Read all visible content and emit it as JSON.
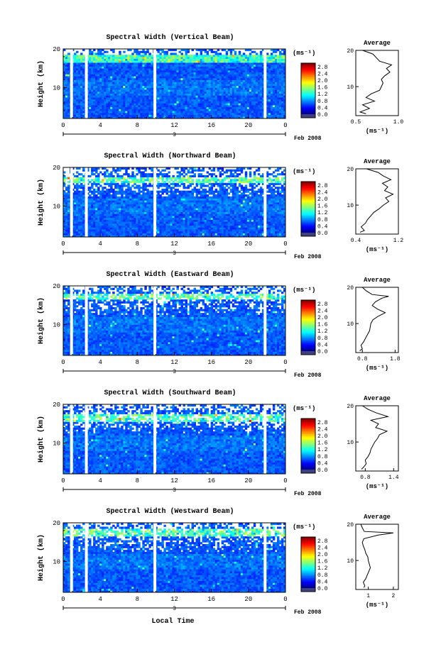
{
  "figure": {
    "xlabel": "Local Time",
    "date_label": "Feb 2008",
    "day_label": "3",
    "units": "(ms⁻¹)",
    "average_title": "Average",
    "ylabel": "Height (km)",
    "colorbar_ticks": [
      "2.8",
      "2.4",
      "2.0",
      "1.6",
      "1.2",
      "0.8",
      "0.4",
      "0.0"
    ],
    "colors": {
      "background": "#ffffff",
      "colormap": [
        "#000080",
        "#0000ff",
        "#0080ff",
        "#00ffff",
        "#80ff80",
        "#ffff00",
        "#ff8000",
        "#ff0000",
        "#800000"
      ],
      "colorbar_floor": "#404080"
    }
  },
  "chart_data": [
    {
      "type": "heatmap",
      "title": "Spectral Width (Vertical Beam)",
      "x_ticks": [
        "0",
        "4",
        "8",
        "12",
        "16",
        "20",
        "0"
      ],
      "xlim": [
        0,
        24
      ],
      "y_ticks": [
        "20",
        "10"
      ],
      "ylim": [
        2,
        20
      ],
      "data_gaps_hours": [
        0.9,
        2.5,
        9.9,
        21.8
      ],
      "zlim": [
        0.0,
        3.0
      ],
      "average": {
        "x_ticks": [
          "0.5",
          "1.0"
        ],
        "xlim": [
          0.5,
          1.0
        ],
        "y_ticks": [
          "20",
          "10"
        ],
        "ylim": [
          2,
          20
        ],
        "profile": [
          [
            0.62,
            2.5
          ],
          [
            0.55,
            3
          ],
          [
            0.66,
            4
          ],
          [
            0.58,
            5
          ],
          [
            0.72,
            6
          ],
          [
            0.62,
            7
          ],
          [
            0.68,
            8
          ],
          [
            0.78,
            9
          ],
          [
            0.8,
            10
          ],
          [
            0.82,
            11
          ],
          [
            0.8,
            12
          ],
          [
            0.84,
            13
          ],
          [
            0.9,
            14
          ],
          [
            0.86,
            15
          ],
          [
            0.92,
            16
          ],
          [
            0.78,
            17
          ],
          [
            0.74,
            18
          ],
          [
            0.7,
            19
          ],
          [
            0.58,
            20
          ]
        ]
      }
    },
    {
      "type": "heatmap",
      "title": "Spectral Width (Northward Beam)",
      "x_ticks": [
        "0",
        "4",
        "8",
        "12",
        "16",
        "20",
        "0"
      ],
      "xlim": [
        0,
        24
      ],
      "y_ticks": [
        "20",
        "10"
      ],
      "ylim": [
        2,
        20
      ],
      "data_gaps_hours": [
        0.9,
        2.5,
        9.9,
        21.8
      ],
      "zlim": [
        0.0,
        3.0
      ],
      "average": {
        "x_ticks": [
          "0.4",
          "1.2"
        ],
        "xlim": [
          0.4,
          1.2
        ],
        "y_ticks": [
          "20",
          "10"
        ],
        "ylim": [
          2,
          20
        ],
        "profile": [
          [
            0.48,
            2.5
          ],
          [
            0.56,
            3
          ],
          [
            0.5,
            4
          ],
          [
            0.58,
            5
          ],
          [
            0.62,
            6
          ],
          [
            0.68,
            7
          ],
          [
            0.74,
            8
          ],
          [
            0.84,
            9
          ],
          [
            0.92,
            10
          ],
          [
            1.02,
            11
          ],
          [
            0.96,
            12
          ],
          [
            1.1,
            13
          ],
          [
            0.94,
            14
          ],
          [
            1.0,
            15
          ],
          [
            0.9,
            16
          ],
          [
            1.06,
            17
          ],
          [
            0.92,
            18
          ],
          [
            0.82,
            19
          ],
          [
            0.6,
            20
          ]
        ]
      }
    },
    {
      "type": "heatmap",
      "title": "Spectral Width (Eastward Beam)",
      "x_ticks": [
        "0",
        "4",
        "8",
        "12",
        "16",
        "20",
        "0"
      ],
      "xlim": [
        0,
        24
      ],
      "y_ticks": [
        "20",
        "10"
      ],
      "ylim": [
        2,
        20
      ],
      "data_gaps_hours": [
        0.9,
        2.5,
        9.9,
        21.8
      ],
      "zlim": [
        0.0,
        3.0
      ],
      "average": {
        "x_ticks": [
          "0.8",
          "1.8"
        ],
        "xlim": [
          0.6,
          1.9
        ],
        "y_ticks": [
          "20",
          "10"
        ],
        "ylim": [
          2,
          20
        ],
        "profile": [
          [
            0.72,
            2.5
          ],
          [
            0.8,
            3
          ],
          [
            0.76,
            4
          ],
          [
            0.84,
            5
          ],
          [
            0.9,
            6
          ],
          [
            0.96,
            7
          ],
          [
            1.02,
            8
          ],
          [
            1.04,
            9
          ],
          [
            1.06,
            10
          ],
          [
            1.12,
            11
          ],
          [
            1.28,
            12
          ],
          [
            1.5,
            13
          ],
          [
            1.26,
            14
          ],
          [
            1.1,
            15
          ],
          [
            1.2,
            16
          ],
          [
            1.4,
            17
          ],
          [
            1.6,
            17.5
          ],
          [
            1.1,
            18
          ],
          [
            0.92,
            19
          ],
          [
            0.8,
            20
          ]
        ]
      }
    },
    {
      "type": "heatmap",
      "title": "Spectral Width (Southward Beam)",
      "x_ticks": [
        "0",
        "4",
        "8",
        "12",
        "16",
        "20",
        "0"
      ],
      "xlim": [
        0,
        24
      ],
      "y_ticks": [
        "20",
        "10"
      ],
      "ylim": [
        2,
        20
      ],
      "data_gaps_hours": [
        0.9,
        2.5,
        9.9,
        21.8
      ],
      "zlim": [
        0.0,
        3.0
      ],
      "average": {
        "x_ticks": [
          "0.8",
          "1.4"
        ],
        "xlim": [
          0.6,
          1.5
        ],
        "y_ticks": [
          "20",
          "10"
        ],
        "ylim": [
          2,
          20
        ],
        "profile": [
          [
            0.72,
            2.5
          ],
          [
            0.76,
            3
          ],
          [
            0.82,
            4
          ],
          [
            0.8,
            5
          ],
          [
            0.86,
            6
          ],
          [
            0.9,
            7
          ],
          [
            0.92,
            8
          ],
          [
            0.96,
            9
          ],
          [
            1.0,
            10
          ],
          [
            1.06,
            11
          ],
          [
            1.1,
            12
          ],
          [
            1.26,
            13
          ],
          [
            1.02,
            14
          ],
          [
            1.08,
            15
          ],
          [
            0.92,
            16
          ],
          [
            1.28,
            17
          ],
          [
            1.04,
            18
          ],
          [
            0.86,
            19
          ],
          [
            0.74,
            20
          ]
        ]
      }
    },
    {
      "type": "heatmap",
      "title": "Spectral Width (Westward Beam)",
      "x_ticks": [
        "0",
        "4",
        "8",
        "12",
        "16",
        "20",
        "0"
      ],
      "xlim": [
        0,
        24
      ],
      "y_ticks": [
        "20",
        "10"
      ],
      "ylim": [
        2,
        20
      ],
      "data_gaps_hours": [
        0.9,
        2.5,
        9.9,
        21.8
      ],
      "zlim": [
        0.0,
        3.0
      ],
      "average": {
        "x_ticks": [
          "1",
          "2"
        ],
        "xlim": [
          0.5,
          2.2
        ],
        "y_ticks": [
          "20",
          "10"
        ],
        "ylim": [
          2,
          20
        ],
        "profile": [
          [
            0.82,
            2.5
          ],
          [
            0.86,
            3
          ],
          [
            0.8,
            4
          ],
          [
            0.9,
            5
          ],
          [
            0.96,
            6
          ],
          [
            1.02,
            7
          ],
          [
            1.08,
            8
          ],
          [
            1.04,
            9
          ],
          [
            1.0,
            10
          ],
          [
            0.98,
            11
          ],
          [
            0.9,
            12
          ],
          [
            0.86,
            13
          ],
          [
            0.8,
            14
          ],
          [
            0.76,
            15
          ],
          [
            0.82,
            16
          ],
          [
            1.4,
            17
          ],
          [
            2.0,
            17.6
          ],
          [
            0.84,
            18
          ],
          [
            0.76,
            19
          ],
          [
            0.7,
            20
          ]
        ]
      }
    }
  ]
}
